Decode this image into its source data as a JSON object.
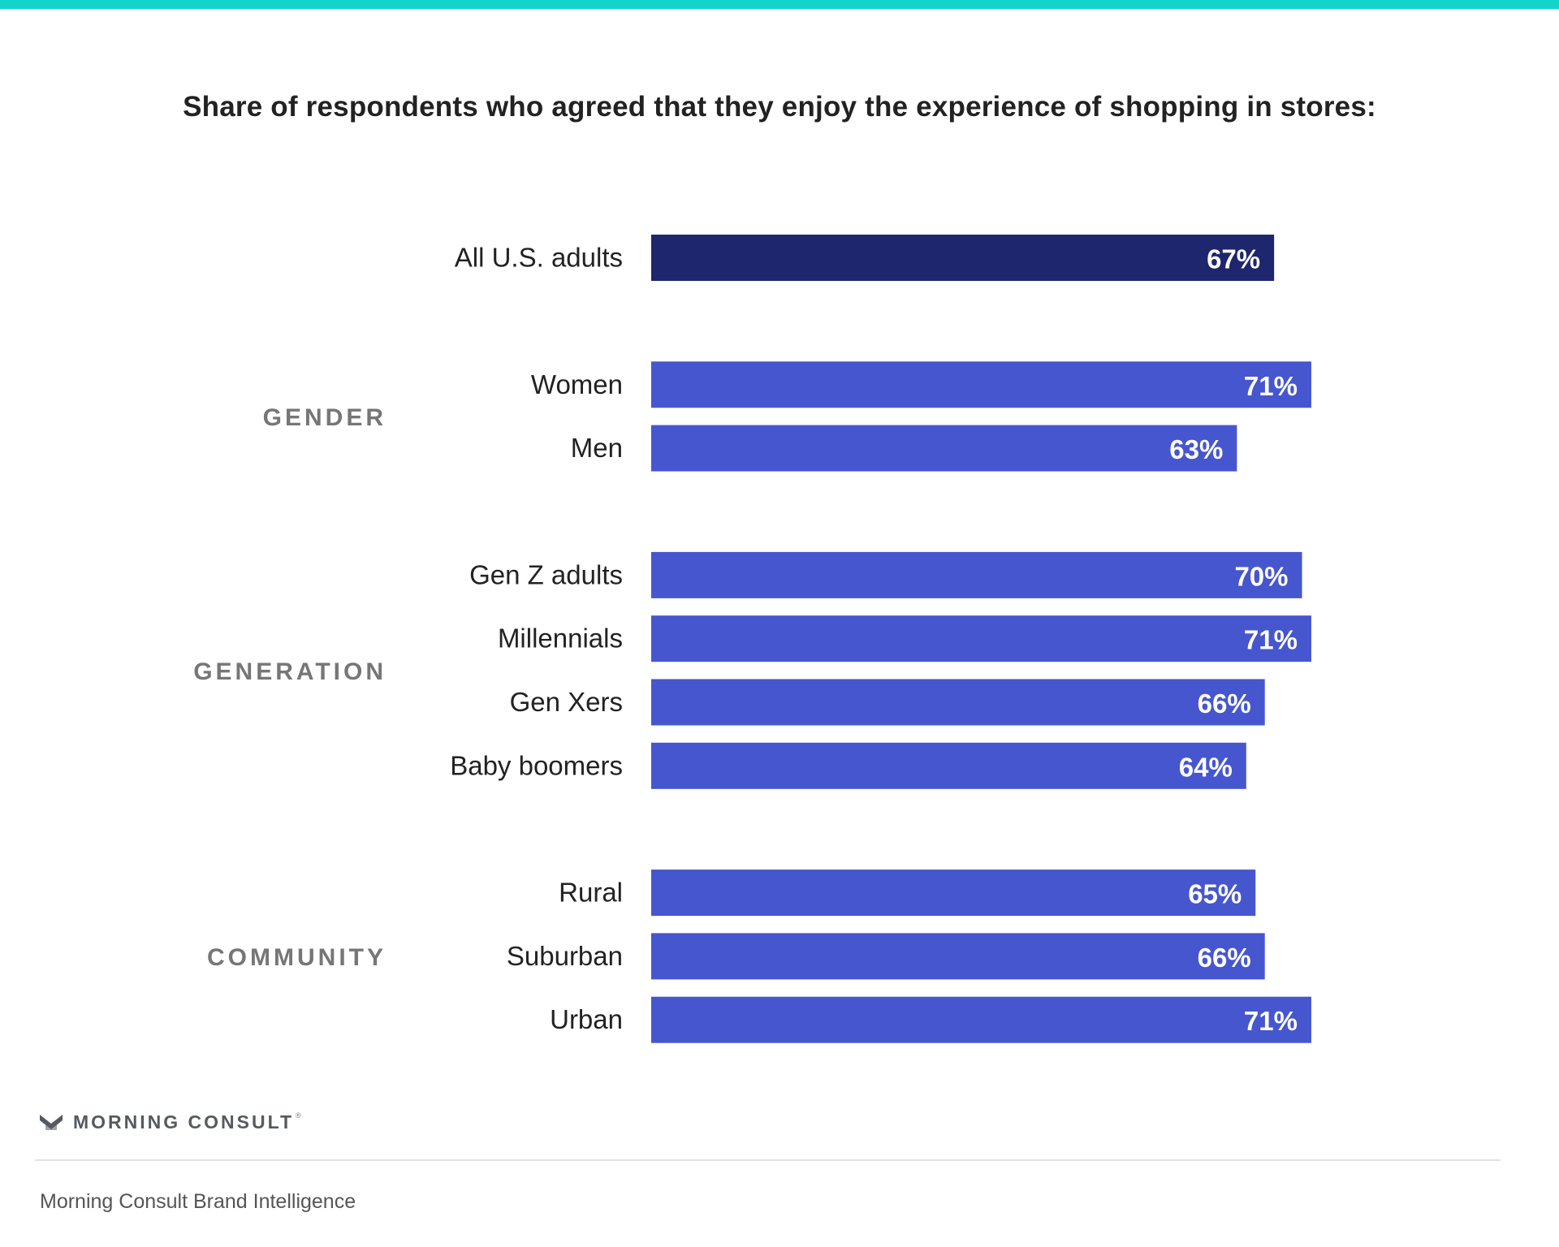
{
  "title": "Share of respondents who agreed that they enjoy the experience of shopping in stores:",
  "brand": {
    "name": "MORNING CONSULT",
    "registered_mark": "®",
    "icon": "morning-consult-m-logo-icon"
  },
  "source": "Morning Consult Brand Intelligence",
  "colors": {
    "top_stripe": "#14d3c8",
    "highlight_bar": "#1e266d",
    "bar": "#4656cf",
    "bar_label": "#ffffff",
    "category_label": "#222222",
    "group_label": "#767676"
  },
  "chart_data": {
    "type": "bar",
    "orientation": "horizontal",
    "title": "Share of respondents who agreed that they enjoy the experience of shopping in stores:",
    "unit": "%",
    "grid": false,
    "legend": "none",
    "groups": [
      {
        "name": "",
        "categories": [
          "All U.S. adults"
        ],
        "values": [
          67
        ],
        "labels": [
          "67%"
        ],
        "highlight": true
      },
      {
        "name": "GENDER",
        "categories": [
          "Women",
          "Men"
        ],
        "values": [
          71,
          63
        ],
        "labels": [
          "71%",
          "63%"
        ]
      },
      {
        "name": "GENERATION",
        "categories": [
          "Gen Z adults",
          "Millennials",
          "Gen Xers",
          "Baby boomers"
        ],
        "values": [
          70,
          71,
          66,
          64
        ],
        "labels": [
          "70%",
          "71%",
          "66%",
          "64%"
        ]
      },
      {
        "name": "COMMUNITY",
        "categories": [
          "Rural",
          "Suburban",
          "Urban"
        ],
        "values": [
          65,
          66,
          71
        ],
        "labels": [
          "65%",
          "66%",
          "71%"
        ]
      }
    ]
  }
}
